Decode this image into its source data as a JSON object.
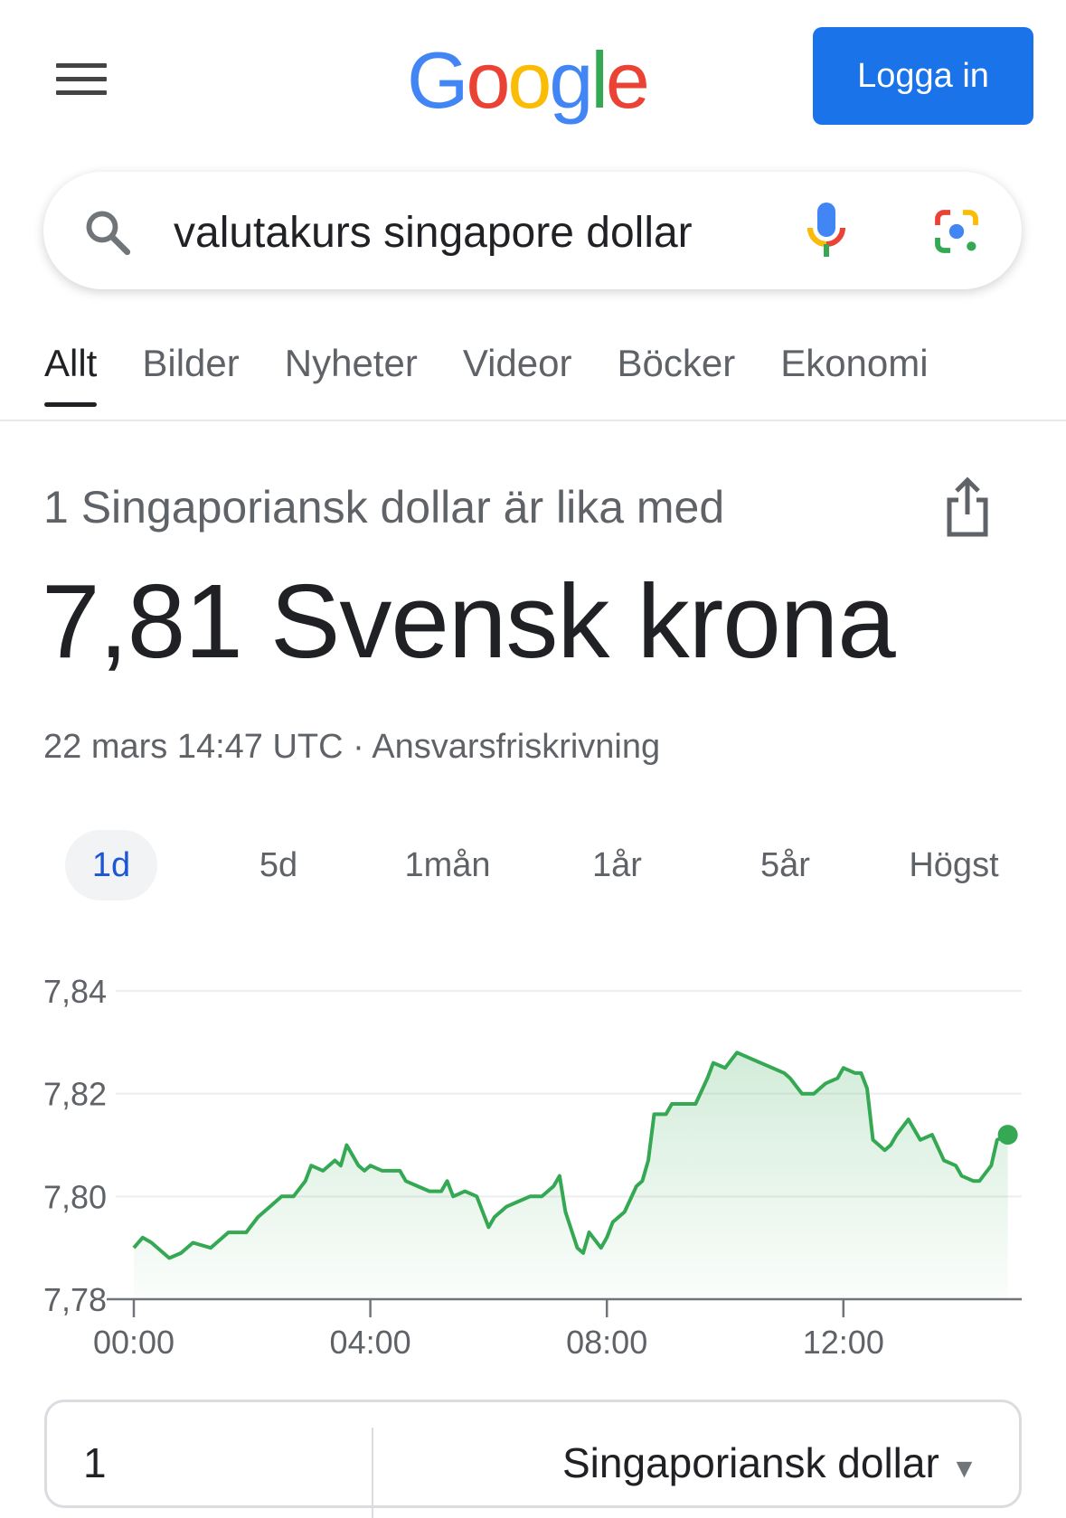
{
  "header": {
    "logo": "Google",
    "login_label": "Logga in",
    "logo_colors": [
      "#4285f4",
      "#ea4335",
      "#fbbc05",
      "#4285f4",
      "#34a853",
      "#ea4335"
    ]
  },
  "search": {
    "query": "valutakurs singapore dollar",
    "icons": [
      "search-icon",
      "microphone-icon",
      "google-lens-icon"
    ]
  },
  "tabs": [
    {
      "label": "Allt",
      "active": true
    },
    {
      "label": "Bilder"
    },
    {
      "label": "Nyheter"
    },
    {
      "label": "Videor"
    },
    {
      "label": "Böcker"
    },
    {
      "label": "Ekonomi"
    }
  ],
  "result": {
    "subtitle": "1 Singaporiansk dollar är lika med",
    "value": "7,81 Svensk krona",
    "timestamp": "22 mars 14:47 UTC",
    "separator": "·",
    "disclaimer": "Ansvarsfriskrivning"
  },
  "ranges": [
    {
      "label": "1d",
      "active": true
    },
    {
      "label": "5d"
    },
    {
      "label": "1mån"
    },
    {
      "label": "1år"
    },
    {
      "label": "5år"
    },
    {
      "label": "Högst"
    }
  ],
  "chart_data": {
    "type": "area",
    "color": "#34a853",
    "ylim": [
      7.78,
      7.84
    ],
    "yticks": [
      "7,84",
      "7,82",
      "7,80",
      "7,78"
    ],
    "xticks": [
      "00:00",
      "04:00",
      "08:00",
      "12:00"
    ],
    "grid": true,
    "series": [
      {
        "x": [
          0,
          0.15,
          0.3,
          0.5,
          0.6,
          0.8,
          1.0,
          1.3,
          1.6,
          1.9,
          2.1,
          2.3,
          2.5,
          2.7,
          2.9,
          3.0,
          3.2,
          3.4,
          3.5,
          3.6,
          3.8,
          3.9,
          4.0,
          4.2,
          4.5,
          4.6,
          4.8,
          5.0,
          5.2,
          5.3,
          5.4,
          5.6,
          5.8,
          6.0,
          6.1,
          6.3,
          6.5,
          6.7,
          6.9,
          7.1,
          7.2,
          7.3,
          7.5,
          7.6,
          7.7,
          7.9,
          8.0,
          8.1,
          8.3,
          8.5,
          8.6,
          8.7,
          8.8,
          9.0,
          9.1,
          9.3,
          9.5,
          9.7,
          9.8,
          10.0,
          10.2,
          10.4,
          10.6,
          10.8,
          11.0,
          11.1,
          11.3,
          11.5,
          11.7,
          11.9,
          12.0,
          12.2,
          12.3,
          12.4,
          12.5,
          12.7,
          12.8,
          12.9,
          13.1,
          13.3,
          13.5,
          13.7,
          13.9,
          14.0,
          14.2,
          14.3,
          14.5,
          14.6,
          14.78
        ],
        "values": [
          7.79,
          7.792,
          7.791,
          7.789,
          7.788,
          7.789,
          7.791,
          7.79,
          7.793,
          7.793,
          7.796,
          7.798,
          7.8,
          7.8,
          7.803,
          7.806,
          7.805,
          7.807,
          7.806,
          7.81,
          7.806,
          7.805,
          7.806,
          7.805,
          7.805,
          7.803,
          7.802,
          7.801,
          7.801,
          7.803,
          7.8,
          7.801,
          7.8,
          7.794,
          7.796,
          7.798,
          7.799,
          7.8,
          7.8,
          7.802,
          7.804,
          7.797,
          7.79,
          7.789,
          7.793,
          7.79,
          7.792,
          7.795,
          7.797,
          7.802,
          7.803,
          7.807,
          7.816,
          7.816,
          7.818,
          7.818,
          7.818,
          7.823,
          7.826,
          7.825,
          7.828,
          7.827,
          7.826,
          7.825,
          7.824,
          7.823,
          7.82,
          7.82,
          7.822,
          7.823,
          7.825,
          7.824,
          7.824,
          7.821,
          7.811,
          7.809,
          7.81,
          7.812,
          7.815,
          7.811,
          7.812,
          7.807,
          7.806,
          7.804,
          7.803,
          7.803,
          7.806,
          7.811,
          7.812
        ]
      }
    ]
  },
  "converter": {
    "amount": "1",
    "currency": "Singaporiansk dollar"
  }
}
